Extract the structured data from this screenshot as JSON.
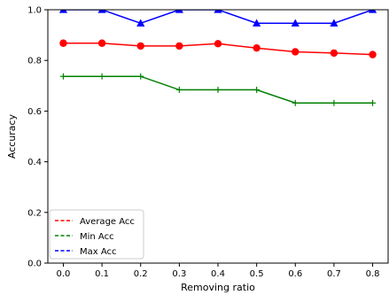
{
  "chart_data": {
    "type": "line",
    "x": [
      0.0,
      0.1,
      0.2,
      0.3,
      0.4,
      0.5,
      0.6,
      0.7,
      0.8
    ],
    "x_tick_labels": [
      "0.0",
      "0.1",
      "0.2",
      "0.3",
      "0.4",
      "0.5",
      "0.6",
      "0.7",
      "0.8"
    ],
    "y_tick_values": [
      0.0,
      0.2,
      0.4,
      0.6,
      0.8,
      1.0
    ],
    "y_tick_labels": [
      "0.0",
      "0.2",
      "0.4",
      "0.6",
      "0.8",
      "1.0"
    ],
    "xlabel": "Removing ratio",
    "ylabel": "Accuracy",
    "xlim": [
      -0.04,
      0.84
    ],
    "ylim": [
      0.0,
      1.0
    ],
    "grid": false,
    "legend_position": "lower-left",
    "series": [
      {
        "name": "Max Acc",
        "color": "#0000ff",
        "marker": "triangle",
        "values": [
          1.0,
          1.0,
          0.947,
          1.0,
          1.0,
          0.947,
          0.947,
          0.947,
          1.0
        ]
      },
      {
        "name": "Average Acc",
        "color": "#ff0000",
        "marker": "circle",
        "values": [
          0.868,
          0.868,
          0.857,
          0.857,
          0.866,
          0.849,
          0.834,
          0.829,
          0.823
        ]
      },
      {
        "name": "Min Acc",
        "color": "#008000",
        "marker": "plus",
        "values": [
          0.737,
          0.737,
          0.737,
          0.684,
          0.684,
          0.684,
          0.632,
          0.632,
          0.632
        ]
      }
    ],
    "legend_order": [
      "Average Acc",
      "Min Acc",
      "Max Acc"
    ]
  }
}
